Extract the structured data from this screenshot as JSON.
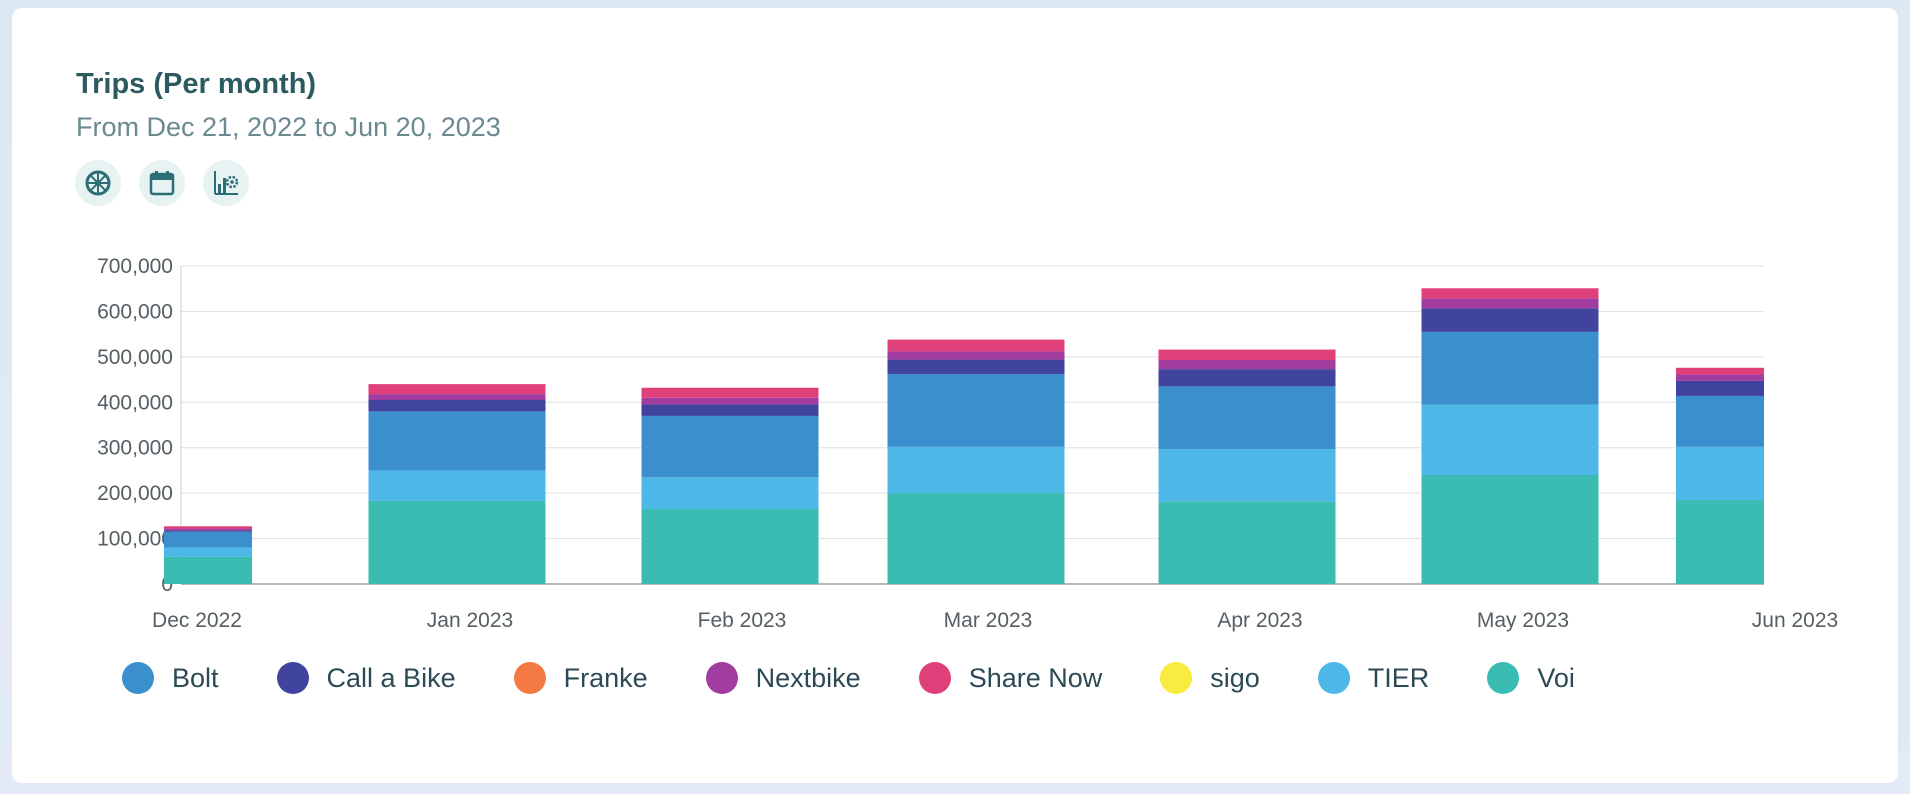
{
  "header": {
    "title": "Trips (Per month)",
    "subtitle": "From Dec 21, 2022 to Jun 20, 2023"
  },
  "toolbar": [
    {
      "name": "provider-filter-icon"
    },
    {
      "name": "calendar-icon"
    },
    {
      "name": "chart-settings-icon"
    }
  ],
  "chart_data": {
    "type": "bar",
    "stacked": true,
    "categories": [
      "Dec 2022",
      "Jan 2023",
      "Feb 2023",
      "Mar 2023",
      "Apr 2023",
      "May 2023",
      "Jun 2023"
    ],
    "ylim": [
      0,
      700000
    ],
    "yticks": [
      0,
      100000,
      200000,
      300000,
      400000,
      500000,
      600000,
      700000
    ],
    "ytick_labels": [
      "0",
      "100,000",
      "200,000",
      "300,000",
      "400,000",
      "500,000",
      "600,000",
      "700,000"
    ],
    "grid": true,
    "legend_position": "bottom",
    "series": [
      {
        "name": "Voi",
        "color": "#3bbcb3",
        "values": [
          60000,
          183000,
          165000,
          200000,
          182000,
          240000,
          185000
        ]
      },
      {
        "name": "TIER",
        "color": "#4db7e8",
        "values": [
          20000,
          67000,
          70000,
          102000,
          115000,
          155000,
          117000
        ]
      },
      {
        "name": "Bolt",
        "color": "#3b8fcc",
        "values": [
          35000,
          130000,
          135000,
          160000,
          138000,
          160000,
          112000
        ]
      },
      {
        "name": "Call a Bike",
        "color": "#40449e",
        "values": [
          3000,
          25000,
          25000,
          32000,
          38000,
          52000,
          33000
        ]
      },
      {
        "name": "Franke",
        "color": "#f47a44",
        "values": [
          0,
          0,
          0,
          0,
          0,
          0,
          0
        ]
      },
      {
        "name": "Nextbike",
        "color": "#a23c9f",
        "values": [
          4000,
          13000,
          15000,
          18000,
          20000,
          22000,
          14000
        ]
      },
      {
        "name": "Share Now",
        "color": "#e0407a",
        "values": [
          5000,
          22000,
          22000,
          26000,
          23000,
          22000,
          15000
        ]
      },
      {
        "name": "sigo",
        "color": "#f9eb40",
        "values": [
          0,
          0,
          0,
          0,
          0,
          0,
          0
        ]
      }
    ],
    "legend": [
      "Bolt",
      "Call a Bike",
      "Franke",
      "Nextbike",
      "Share Now",
      "sigo",
      "TIER",
      "Voi"
    ]
  }
}
